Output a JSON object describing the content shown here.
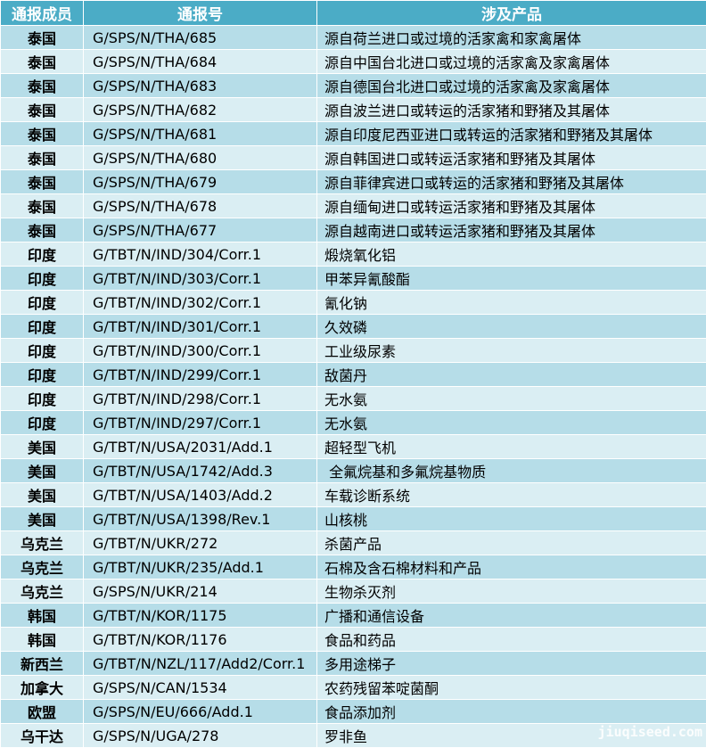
{
  "headers": [
    "通报成员",
    "通报号",
    "涉及产品"
  ],
  "rows": [
    [
      "泰国",
      "G/SPS/N/THA/685",
      "源自荷兰进口或过境的活家禽和家禽屠体"
    ],
    [
      "泰国",
      "G/SPS/N/THA/684",
      "源自中国台北进口或过境的活家禽及家禽屠体"
    ],
    [
      "泰国",
      "G/SPS/N/THA/683",
      "源自德国台北进口或过境的活家禽及家禽屠体"
    ],
    [
      "泰国",
      "G/SPS/N/THA/682",
      "源自波兰进口或转运的活家猪和野猪及其屠体"
    ],
    [
      "泰国",
      "G/SPS/N/THA/681",
      "源自印度尼西亚进口或转运的活家猪和野猪及其屠体"
    ],
    [
      "泰国",
      "G/SPS/N/THA/680",
      "源自韩国进口或转运活家猪和野猪及其屠体"
    ],
    [
      "泰国",
      "G/SPS/N/THA/679",
      "源自菲律宾进口或转运的活家猪和野猪及其屠体"
    ],
    [
      "泰国",
      "G/SPS/N/THA/678",
      "源自缅甸进口或转运活家猪和野猪及其屠体"
    ],
    [
      "泰国",
      "G/SPS/N/THA/677",
      "源自越南进口或转运活家猪和野猪及其屠体"
    ],
    [
      "印度",
      "G/TBT/N/IND/304/Corr.1",
      "煅烧氧化铝"
    ],
    [
      "印度",
      "G/TBT/N/IND/303/Corr.1",
      "甲苯异氰酸酯"
    ],
    [
      "印度",
      "G/TBT/N/IND/302/Corr.1",
      "氰化钠"
    ],
    [
      "印度",
      "G/TBT/N/IND/301/Corr.1",
      "久效磷"
    ],
    [
      "印度",
      "G/TBT/N/IND/300/Corr.1",
      "工业级尿素"
    ],
    [
      "印度",
      "G/TBT/N/IND/299/Corr.1",
      "敌菌丹"
    ],
    [
      "印度",
      "G/TBT/N/IND/298/Corr.1",
      "无水氨"
    ],
    [
      "印度",
      "G/TBT/N/IND/297/Corr.1",
      "无水氨"
    ],
    [
      "美国",
      "G/TBT/N/USA/2031/Add.1",
      "超轻型飞机"
    ],
    [
      "美国",
      "G/TBT/N/USA/1742/Add.3",
      " 全氟烷基和多氟烷基物质"
    ],
    [
      "美国",
      "G/TBT/N/USA/1403/Add.2",
      "车载诊断系统"
    ],
    [
      "美国",
      "G/TBT/N/USA/1398/Rev.1",
      "山核桃"
    ],
    [
      "乌克兰",
      "G/TBT/N/UKR/272",
      "杀菌产品"
    ],
    [
      "乌克兰",
      "G/TBT/N/UKR/235/Add.1",
      "石棉及含石棉材料和产品"
    ],
    [
      "乌克兰",
      "G/SPS/N/UKR/214",
      "生物杀灭剂"
    ],
    [
      "韩国",
      "G/TBT/N/KOR/1175",
      "广播和通信设备"
    ],
    [
      "韩国",
      "G/TBT/N/KOR/1176",
      "食品和药品"
    ],
    [
      "新西兰",
      "G/TBT/N/NZL/117/Add2/Corr.1",
      "多用途梯子"
    ],
    [
      "加拿大",
      "G/SPS/N/CAN/1534",
      "农药残留苯啶菌酮"
    ],
    [
      "欧盟",
      "G/SPS/N/EU/666/Add.1",
      "食品添加剂"
    ],
    [
      "乌干达",
      "G/SPS/N/UGA/278",
      "罗非鱼"
    ]
  ],
  "watermark": "jiuqiseed.com",
  "colors": {
    "header": "#4bacc6",
    "row_dark": "#b6dde8",
    "row_light": "#daeef3"
  }
}
